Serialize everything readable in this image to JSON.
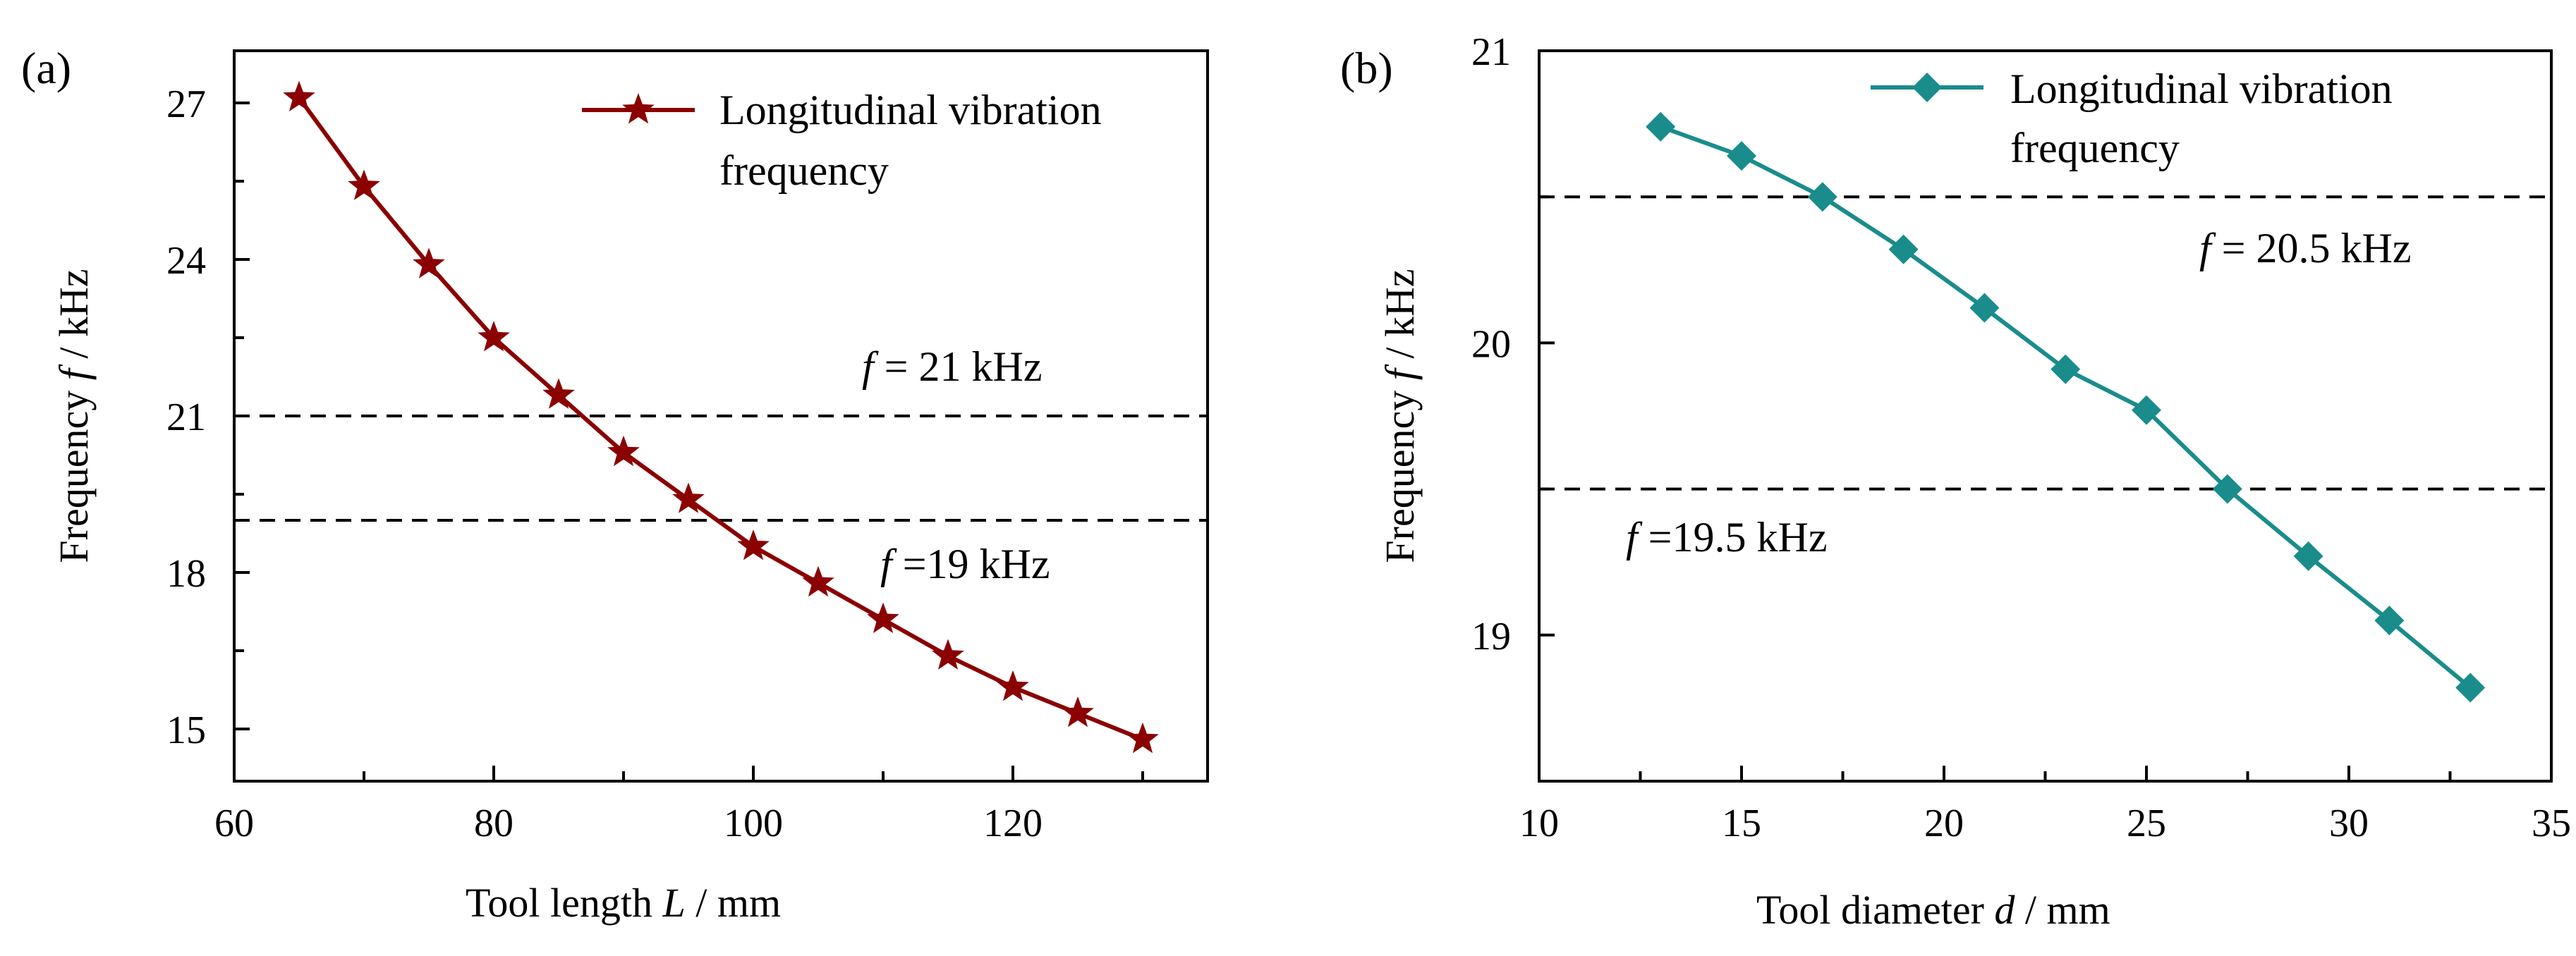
{
  "chart_data": [
    {
      "panel_label": "(a)",
      "type": "line",
      "x": [
        65,
        70,
        75,
        80,
        85,
        90,
        95,
        100,
        105,
        110,
        115,
        120,
        125,
        130
      ],
      "series": [
        {
          "name": "Longitudinal vibration frequency",
          "legend_lines": [
            "Longitudinal vibration",
            "frequency"
          ],
          "marker": "star",
          "color": "#8b0000",
          "values": [
            27.1,
            25.4,
            23.9,
            22.5,
            21.4,
            20.3,
            19.4,
            18.5,
            17.8,
            17.1,
            16.4,
            15.8,
            15.3,
            14.8
          ]
        }
      ],
      "xlim": [
        60,
        135
      ],
      "ylim": [
        14,
        28
      ],
      "xticks": [
        60,
        80,
        100,
        120
      ],
      "yticks": [
        15,
        18,
        21,
        24,
        27
      ],
      "xlabel": {
        "text": "Tool length ",
        "var": "L",
        "unit": " / mm"
      },
      "ylabel": {
        "text": "Frequency ",
        "var": "f",
        "unit": " / kHz"
      },
      "legend_position": "top-right",
      "reference_lines": [
        {
          "value": 21,
          "var": "f",
          "label": " = 21 kHz",
          "label_side": "above"
        },
        {
          "value": 19,
          "var": "f",
          "label": " =19 kHz",
          "label_side": "below"
        }
      ]
    },
    {
      "panel_label": "(b)",
      "type": "line",
      "x": [
        13,
        15,
        17,
        19,
        21,
        23,
        25,
        27,
        29,
        31,
        33
      ],
      "series": [
        {
          "name": "Longitudinal vibration frequency",
          "legend_lines": [
            "Longitudinal vibration",
            "frequency"
          ],
          "marker": "diamond",
          "color": "#1a8c8c",
          "values": [
            20.74,
            20.64,
            20.5,
            20.32,
            20.12,
            19.91,
            19.77,
            19.5,
            19.27,
            19.05,
            18.82
          ]
        }
      ],
      "xlim": [
        10,
        35
      ],
      "ylim": [
        18.5,
        21
      ],
      "xticks": [
        10,
        15,
        20,
        25,
        30,
        35
      ],
      "yticks": [
        19,
        20,
        21
      ],
      "xlabel": {
        "text": "Tool diameter ",
        "var": "d",
        "unit": " / mm"
      },
      "ylabel": {
        "text": "Frequency ",
        "var": "f",
        "unit": " / kHz"
      },
      "legend_position": "top-right",
      "reference_lines": [
        {
          "value": 20.5,
          "var": "f",
          "label": " = 20.5 kHz",
          "label_side": "below-right"
        },
        {
          "value": 19.5,
          "var": "f",
          "label": " =19.5 kHz",
          "label_side": "below-left"
        }
      ]
    }
  ]
}
